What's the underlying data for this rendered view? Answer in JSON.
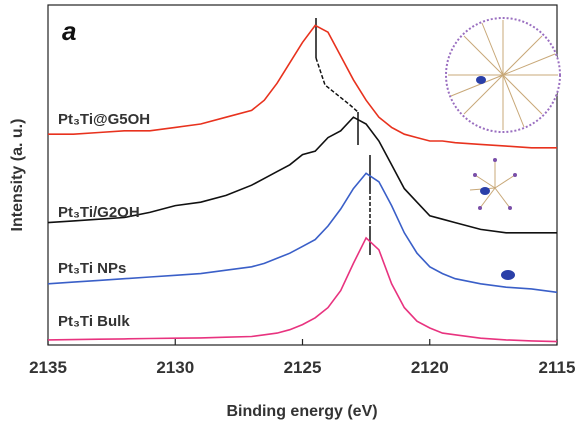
{
  "chart_data": {
    "type": "line",
    "panel_label": "a",
    "x_label": "Binding energy (eV)",
    "y_label": "Intensity (a. u.)",
    "x": [
      2135,
      2134,
      2133,
      2132,
      2131,
      2130,
      2129,
      2128,
      2127,
      2126.5,
      2126,
      2125.5,
      2125,
      2124.5,
      2124,
      2123.5,
      2123,
      2122.5,
      2122,
      2121.5,
      2121,
      2120.5,
      2120,
      2119.5,
      2119,
      2118,
      2117,
      2116,
      2115
    ],
    "xlim": [
      2135,
      2115
    ],
    "xticks": [
      2135,
      2130,
      2125,
      2120,
      2115
    ],
    "ylim": [
      0,
      100
    ],
    "series": [
      {
        "name": "Pt₃Ti@G5OH",
        "color": "#e8321e",
        "values": [
          62,
          62,
          62.5,
          63,
          63,
          64,
          65,
          67,
          69,
          72,
          77,
          83,
          89,
          94,
          92,
          85,
          78,
          72,
          67,
          64,
          62,
          61,
          60,
          60,
          59.5,
          59,
          58.5,
          58,
          58
        ]
      },
      {
        "name": "Pt₃Ti/G2OH",
        "color": "#111111",
        "values": [
          36,
          36.5,
          37,
          37.5,
          39,
          41,
          42,
          44,
          47,
          49,
          51,
          53,
          56,
          57,
          61,
          63,
          67,
          65,
          60,
          53,
          46,
          42,
          38,
          37,
          36,
          34,
          33,
          33,
          33
        ]
      },
      {
        "name": "Pt₃Ti NPs",
        "color": "#3a5fc8",
        "values": [
          18,
          18.5,
          19,
          19.5,
          20,
          20.5,
          21,
          22,
          23,
          24,
          25.5,
          27,
          29,
          31,
          35,
          40,
          46,
          50.5,
          48,
          41,
          33,
          27,
          23,
          21,
          19.5,
          18,
          17,
          16.5,
          15.5
        ]
      },
      {
        "name": "Pt₃Ti Bulk",
        "color": "#e8337f",
        "values": [
          1.5,
          1.6,
          1.7,
          1.8,
          1.9,
          2,
          2.1,
          2.3,
          2.5,
          3,
          3.5,
          4.5,
          6,
          8,
          11,
          16,
          24,
          31.5,
          28,
          18,
          11,
          7,
          5,
          3.5,
          3,
          2,
          1.5,
          1.2,
          1
        ]
      }
    ]
  }
}
